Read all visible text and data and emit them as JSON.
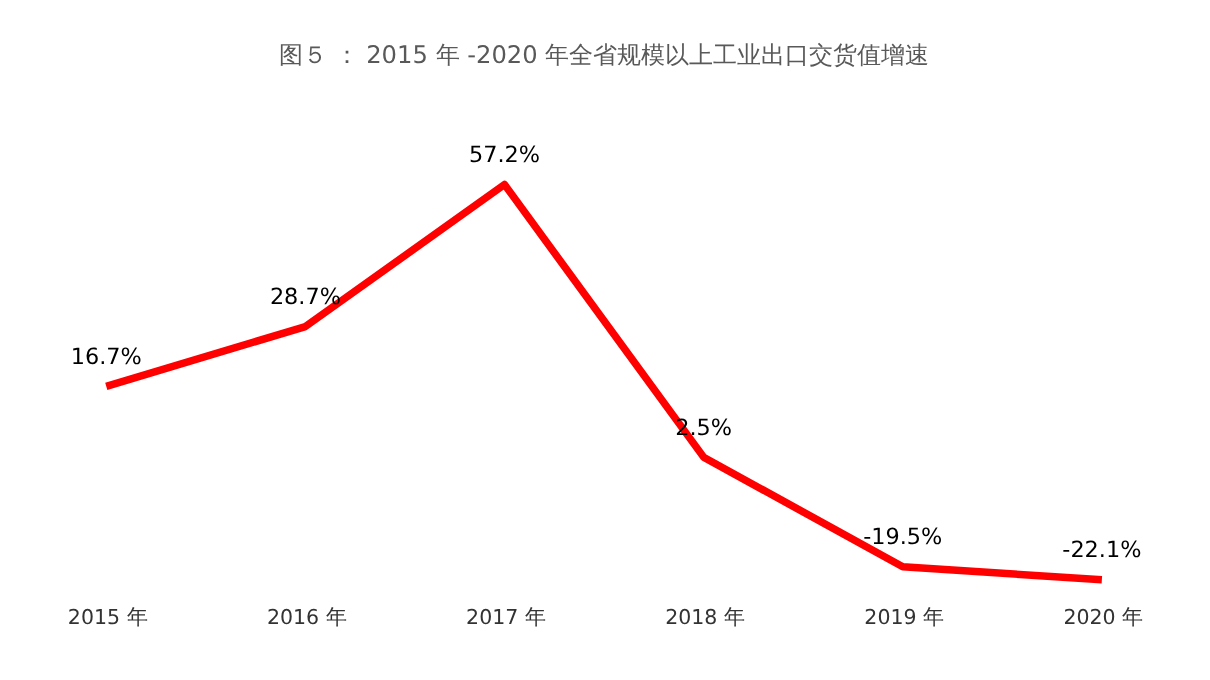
{
  "chart_data": {
    "type": "line",
    "title": "图５ ： 2015 年 -2020 年全省规模以上工业出口交货值增速",
    "categories": [
      "2015 年",
      "2016 年",
      "2017 年",
      "2018 年",
      "2019 年",
      "2020 年"
    ],
    "series": [
      {
        "color": "#ff0000",
        "values": [
          16.7,
          28.7,
          57.2,
          2.5,
          -19.5,
          -22.1
        ],
        "value_labels": [
          "16.7%",
          "28.7%",
          "57.2%",
          "2.5%",
          "-19.5%",
          "-22.1%"
        ]
      }
    ],
    "grid": false,
    "legend": false,
    "marker": "none",
    "tick_labels": "x"
  }
}
